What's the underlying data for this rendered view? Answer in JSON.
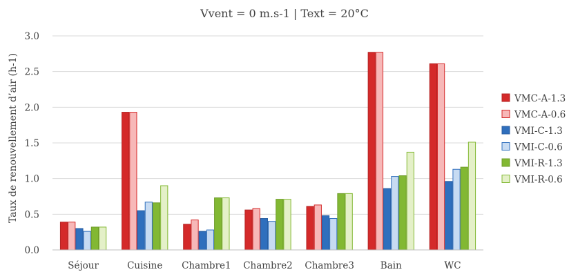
{
  "chart_data": {
    "type": "bar",
    "title": "Vvent = 0 m.s-1 | Text = 20°C",
    "xlabel": "",
    "ylabel": "Taux de renouvellement d’air (h-1)",
    "ylim": [
      0,
      3.0
    ],
    "yticks": [
      "0.0",
      "0.5",
      "1.0",
      "1.5",
      "2.0",
      "2.5",
      "3.0"
    ],
    "grid": true,
    "legend_position": "right",
    "categories": [
      "Séjour",
      "Cuisine",
      "Chambre1",
      "Chambre2",
      "Chambre3",
      "Bain",
      "WC"
    ],
    "series": [
      {
        "name": "VMC-A-1.3",
        "color": "#d42a2a",
        "values": [
          0.39,
          1.93,
          0.36,
          0.56,
          0.61,
          2.77,
          2.61
        ]
      },
      {
        "name": "VMC-A-0.6",
        "color": "#f7b8b8",
        "values": [
          0.39,
          1.93,
          0.42,
          0.58,
          0.63,
          2.77,
          2.61
        ]
      },
      {
        "name": "VMI-C-1.3",
        "color": "#2f6fbd",
        "values": [
          0.3,
          0.55,
          0.26,
          0.44,
          0.48,
          0.86,
          0.96
        ]
      },
      {
        "name": "VMI-C-0.6",
        "color": "#c7dbf2",
        "values": [
          0.26,
          0.67,
          0.28,
          0.4,
          0.44,
          1.03,
          1.13
        ]
      },
      {
        "name": "VMI-R-1.3",
        "color": "#82b833",
        "values": [
          0.32,
          0.66,
          0.73,
          0.71,
          0.79,
          1.04,
          1.16
        ]
      },
      {
        "name": "VMI-R-0.6",
        "color": "#e4f0c8",
        "values": [
          0.32,
          0.9,
          0.73,
          0.71,
          0.79,
          1.37,
          1.51
        ]
      }
    ]
  }
}
